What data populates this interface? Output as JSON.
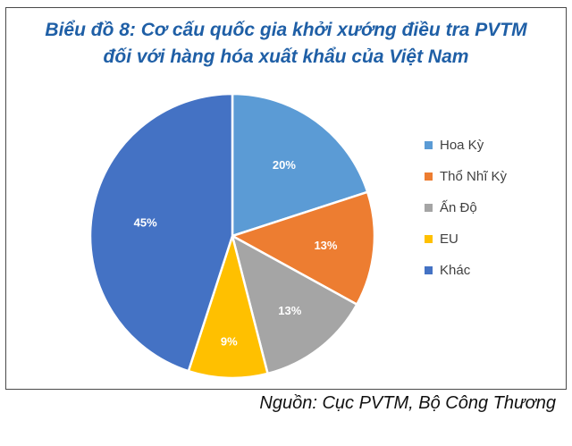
{
  "chart_data": {
    "type": "pie",
    "title_line1": "Biểu đồ 8: Cơ cấu quốc gia khởi xướng điều tra PVTM",
    "title_line2": "đối với hàng hóa xuất khẩu của Việt Nam",
    "categories": [
      "Hoa Kỳ",
      "Thổ Nhĩ Kỳ",
      "Ấn Độ",
      "EU",
      "Khác"
    ],
    "values": [
      20,
      13,
      13,
      9,
      45
    ],
    "labels": [
      "20%",
      "13%",
      "13%",
      "9%",
      "45%"
    ],
    "colors": [
      "#5b9bd5",
      "#ed7d31",
      "#a5a5a5",
      "#ffc000",
      "#4472c4"
    ],
    "legend_position": "right"
  },
  "source": "Nguồn: Cục PVTM, Bộ Công Thương"
}
